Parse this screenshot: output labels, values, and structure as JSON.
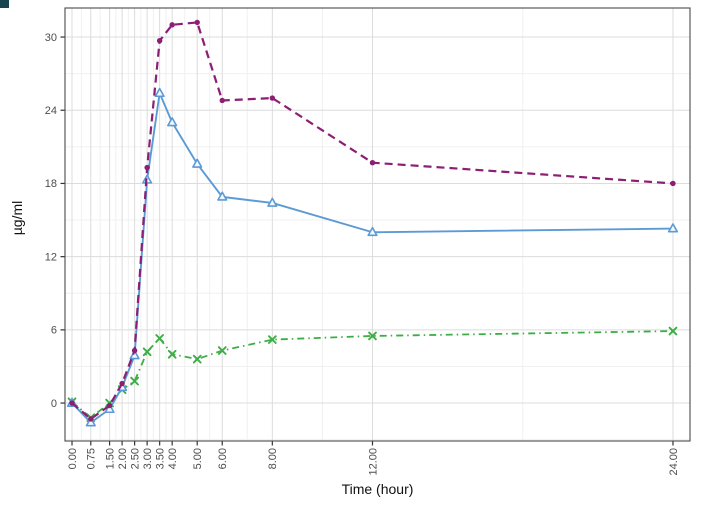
{
  "figure": {
    "x_axis_title": "Time (hour)",
    "y_axis_title": "µg/ml"
  },
  "decor": {
    "corner_artifact_color": "#154650"
  },
  "chart_data": {
    "type": "line",
    "title": "",
    "xlabel": "Time (hour)",
    "ylabel": "µg/ml",
    "legend": "none",
    "grid": "major and minor gridlines, light gray on white panel with thin dark border",
    "x": [
      0,
      0.75,
      1.5,
      2,
      2.5,
      3,
      3.5,
      4,
      5,
      6,
      8,
      12,
      24
    ],
    "x_tick_labels": [
      "0.00",
      "0.75",
      "1.50",
      "2.00",
      "2.50",
      "3.00",
      "3.50",
      "4.00",
      "5.00",
      "6.00",
      "8.00",
      "12.00",
      "24.00"
    ],
    "y_ticks": [
      0,
      6,
      12,
      18,
      24,
      30
    ],
    "y_tick_labels": [
      "0",
      "6",
      "12",
      "18",
      "24",
      "30"
    ],
    "y_minor_ticks": [
      -3,
      3,
      9,
      15,
      21,
      27
    ],
    "xlim": [
      -0.28,
      24.68
    ],
    "ylim": [
      -3.11,
      32.38
    ],
    "series": [
      {
        "name": "high-concentration-dashed",
        "marker": "filled-circle",
        "line": "dashed",
        "color": "#8C1E73",
        "values": [
          0,
          -1.3,
          -0.2,
          1.6,
          4.3,
          19.3,
          29.7,
          31.0,
          31.2,
          24.8,
          25.0,
          19.7,
          18.0
        ]
      },
      {
        "name": "mid-concentration-solid",
        "marker": "open-triangle",
        "line": "solid",
        "color": "#5B9BD5",
        "values": [
          0,
          -1.6,
          -0.5,
          1.3,
          3.9,
          18.3,
          25.4,
          23.0,
          19.6,
          16.9,
          16.4,
          14.0,
          14.3
        ]
      },
      {
        "name": "low-concentration-dashdot",
        "marker": "x-cross",
        "line": "dashdot",
        "color": "#3DAE46",
        "values": [
          0.1,
          -1.2,
          0.0,
          1.1,
          1.8,
          4.2,
          5.3,
          4.0,
          3.6,
          4.3,
          5.2,
          5.5,
          5.9
        ]
      }
    ]
  }
}
